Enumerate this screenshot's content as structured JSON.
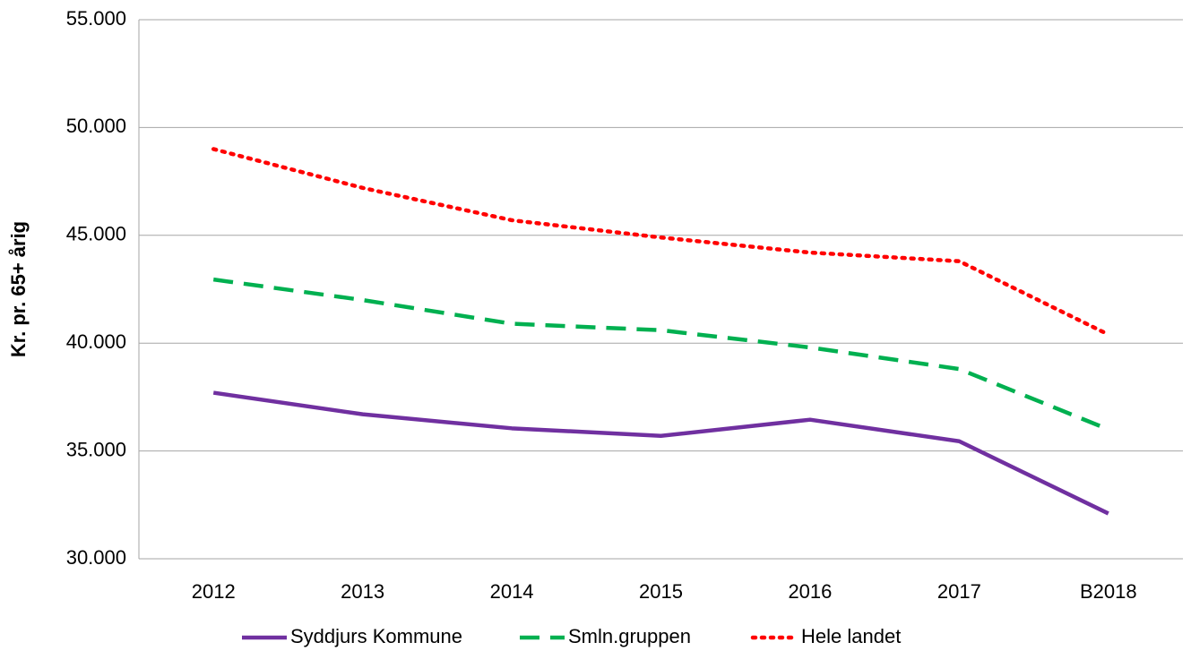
{
  "chart_data": {
    "type": "line",
    "ylabel": "Kr. pr. 65+ årig",
    "categories": [
      "2012",
      "2013",
      "2014",
      "2015",
      "2016",
      "2017",
      "B2018"
    ],
    "series": [
      {
        "name": "Syddjurs Kommune",
        "color": "#7030a0",
        "style": "solid",
        "values": [
          37700,
          36700,
          36050,
          35700,
          36450,
          35450,
          32100
        ]
      },
      {
        "name": "Smln.gruppen",
        "color": "#00b050",
        "style": "dashed",
        "values": [
          42950,
          42000,
          40900,
          40600,
          39800,
          38800,
          36000
        ]
      },
      {
        "name": "Hele landet",
        "color": "#ff0000",
        "style": "dotted",
        "values": [
          49000,
          47200,
          45700,
          44900,
          44200,
          43800,
          40400
        ]
      }
    ],
    "ylim": [
      30000,
      55000
    ],
    "yticks": [
      {
        "value": 30000,
        "label": "30.000"
      },
      {
        "value": 35000,
        "label": "35.000"
      },
      {
        "value": 40000,
        "label": "40.000"
      },
      {
        "value": 45000,
        "label": "45.000"
      },
      {
        "value": 50000,
        "label": "50.000"
      },
      {
        "value": 55000,
        "label": "55.000"
      }
    ],
    "grid": true,
    "legend": "bottom"
  }
}
